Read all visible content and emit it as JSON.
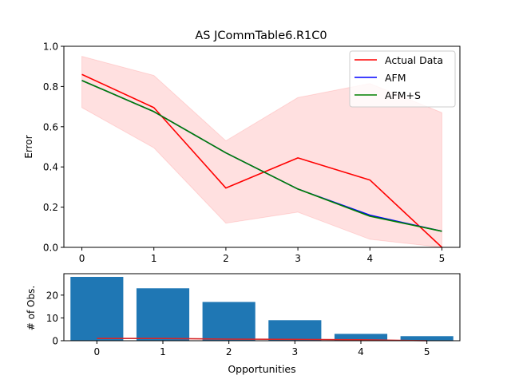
{
  "chart_data": [
    {
      "type": "line",
      "title": "AS JCommTable6.R1C0",
      "xlabel": "",
      "ylabel": "Error",
      "x": [
        0,
        1,
        2,
        3,
        4,
        5
      ],
      "xlim": [
        -0.25,
        5.25
      ],
      "ylim": [
        0.0,
        1.0
      ],
      "xticks": [
        "0",
        "1",
        "2",
        "3",
        "4",
        "5"
      ],
      "yticks": [
        "0.0",
        "0.2",
        "0.4",
        "0.6",
        "0.8",
        "1.0"
      ],
      "grid": false,
      "legend_position": "top-right",
      "series": [
        {
          "name": "Actual Data",
          "color": "#ff0000",
          "values": [
            0.86,
            0.695,
            0.295,
            0.445,
            0.335,
            0.0
          ]
        },
        {
          "name": "AFM",
          "color": "#0000ff",
          "values": [
            0.83,
            0.675,
            0.47,
            0.29,
            0.16,
            0.08
          ]
        },
        {
          "name": "AFM+S",
          "color": "#008000",
          "values": [
            0.83,
            0.675,
            0.47,
            0.29,
            0.155,
            0.08
          ]
        }
      ],
      "band": {
        "color": "#ff0000",
        "opacity": 0.12,
        "upper": [
          0.95,
          0.855,
          0.53,
          0.745,
          0.815,
          0.67
        ],
        "lower": [
          0.695,
          0.495,
          0.12,
          0.175,
          0.04,
          0.0
        ]
      }
    },
    {
      "type": "bar",
      "title": "",
      "xlabel": "Opportunities",
      "ylabel": "# of Obs.",
      "categories": [
        "0",
        "1",
        "2",
        "3",
        "4",
        "5"
      ],
      "values": [
        28,
        23,
        17,
        9,
        3,
        2
      ],
      "bar_color": "#1f77b4",
      "xlim": [
        -0.5,
        5.5
      ],
      "ylim": [
        0,
        29.4
      ],
      "yticks": [
        "0",
        "10",
        "20"
      ],
      "overlay_line": {
        "color": "#d62728",
        "values": [
          1,
          1,
          0.7,
          0.6,
          0.4,
          0
        ]
      }
    }
  ]
}
